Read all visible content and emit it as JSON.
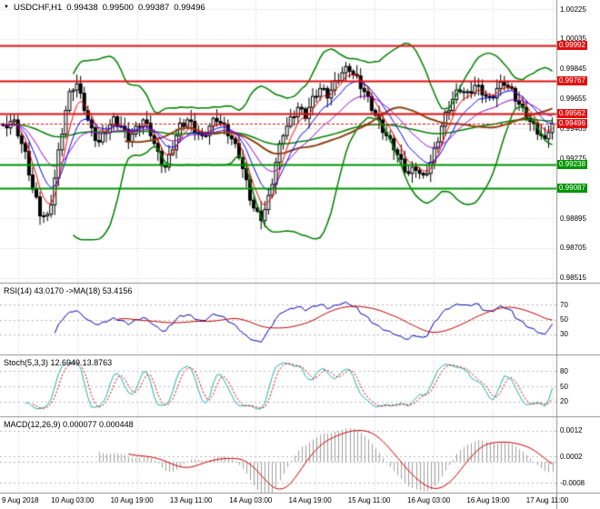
{
  "symbol_panel": {
    "dropdown_icon": "▼",
    "symbol": "USDCHF,H1",
    "open": "0.99438",
    "high": "0.99500",
    "low": "0.99387",
    "close": "0.99496"
  },
  "time_axis": {
    "labels": [
      "9 Aug 2018",
      "10 Aug 03:00",
      "10 Aug 19:00",
      "13 Aug 11:00",
      "14 Aug 03:00",
      "14 Aug 19:00",
      "15 Aug 11:00",
      "16 Aug 03:00",
      "16 Aug 19:00",
      "17 Aug 11:00"
    ]
  },
  "colors": {
    "grid": "#d2d2d2",
    "candle_border": "#000000",
    "bull": "#ffffff",
    "bear": "#000000",
    "bollinger": "#008000",
    "ma_green": "#008000",
    "ma_fast_red": "#ff0000",
    "ma_fast_blue": "#0000ff",
    "ma_fast_violet": "#9400d3",
    "ma_slow_brown": "#8b4513",
    "resistance": "#e01010",
    "support": "#009500",
    "current_price": "#e01010",
    "rsi_line": "#0000b0",
    "rsi_ma_line": "#c00000",
    "stoch_k": "#20b2aa",
    "stoch_d": "#cc0000",
    "macd_hist": "#a0a0a0",
    "macd_signal": "#cc0000",
    "divider": "#909090"
  },
  "chart_data": [
    {
      "type": "candlestick",
      "title": "USDCHF,H1",
      "ohlc_current": {
        "open": 0.99438,
        "high": 0.995,
        "low": 0.99387,
        "close": 0.99496
      },
      "ylim": [
        0.98485,
        1.00283
      ],
      "y_ticks": [
        1.00225,
        1.00035,
        0.99845,
        0.99655,
        0.99465,
        0.99275,
        0.99085,
        0.98895,
        0.98705,
        0.98515
      ],
      "levels": {
        "resistance": [
          0.99992,
          0.99767,
          0.99562
        ],
        "support": [
          0.99238,
          0.99087
        ],
        "last_price": 0.99496
      },
      "overlays": {
        "bollinger_period": 20,
        "bollinger_dev": 2,
        "ma_fast": [
          5,
          10,
          21
        ],
        "ma_green": 100,
        "ma_slow": 34
      },
      "closes": [
        0.9949,
        0.9947,
        0.9951,
        0.9952,
        0.9942,
        0.9937,
        0.9932,
        0.9917,
        0.9908,
        0.9903,
        0.9891,
        0.9891,
        0.9892,
        0.9898,
        0.9915,
        0.9933,
        0.9943,
        0.9958,
        0.997,
        0.9971,
        0.9975,
        0.9969,
        0.9958,
        0.9952,
        0.9947,
        0.9939,
        0.9938,
        0.9944,
        0.9944,
        0.9949,
        0.9954,
        0.9948,
        0.9948,
        0.9946,
        0.9938,
        0.9943,
        0.9948,
        0.9948,
        0.9952,
        0.995,
        0.9942,
        0.9937,
        0.9932,
        0.9923,
        0.9922,
        0.993,
        0.9933,
        0.9942,
        0.995,
        0.9948,
        0.9952,
        0.9951,
        0.9944,
        0.9943,
        0.9942,
        0.9942,
        0.9948,
        0.9953,
        0.9951,
        0.995,
        0.9949,
        0.9942,
        0.994,
        0.9937,
        0.9928,
        0.9921,
        0.9914,
        0.9901,
        0.9896,
        0.9894,
        0.9888,
        0.9895,
        0.9904,
        0.9911,
        0.9925,
        0.9937,
        0.9942,
        0.9948,
        0.9954,
        0.9954,
        0.996,
        0.9959,
        0.9953,
        0.996,
        0.9967,
        0.9967,
        0.9972,
        0.9972,
        0.9966,
        0.9971,
        0.9977,
        0.9977,
        0.9982,
        0.9986,
        0.9983,
        0.9981,
        0.998,
        0.9972,
        0.997,
        0.9967,
        0.9958,
        0.9955,
        0.9952,
        0.9944,
        0.9942,
        0.994,
        0.9933,
        0.993,
        0.9927,
        0.9919,
        0.9918,
        0.9922,
        0.992,
        0.9918,
        0.9917,
        0.9918,
        0.9925,
        0.9934,
        0.9938,
        0.9948,
        0.9957,
        0.9958,
        0.9965,
        0.9971,
        0.997,
        0.997,
        0.997,
        0.9969,
        0.9974,
        0.9974,
        0.9968,
        0.9967,
        0.9967,
        0.9966,
        0.9972,
        0.9976,
        0.9974,
        0.9973,
        0.9972,
        0.9964,
        0.9962,
        0.996,
        0.9953,
        0.9951,
        0.995,
        0.9943,
        0.9942,
        0.994,
        0.9944,
        0.99496
      ]
    },
    {
      "type": "line",
      "name": "RSI",
      "label": "RSI(14) 43.0170 ->MA(18) 53.4156",
      "period": 14,
      "ma_period": 18,
      "current": 43.017,
      "ma_current": 53.4156,
      "y_ticks": [
        70,
        50,
        30
      ],
      "ylim": [
        5,
        95
      ]
    },
    {
      "type": "line",
      "name": "Stochastic",
      "label": "Stoch(5,3,3) 12.6949 13.8763",
      "k_current": 12.6949,
      "d_current": 13.8763,
      "y_ticks": [
        80,
        50,
        20
      ],
      "ylim": [
        -5,
        105
      ]
    },
    {
      "type": "line+histogram",
      "name": "MACD",
      "label": "MACD(12,26,9) 0.000077 0.000448",
      "macd_current": 7.7e-05,
      "signal_current": 0.000448,
      "y_ticks": [
        0.0012,
        0.0002,
        -0.0008
      ],
      "ylim": [
        -0.0011,
        0.0016
      ]
    }
  ]
}
